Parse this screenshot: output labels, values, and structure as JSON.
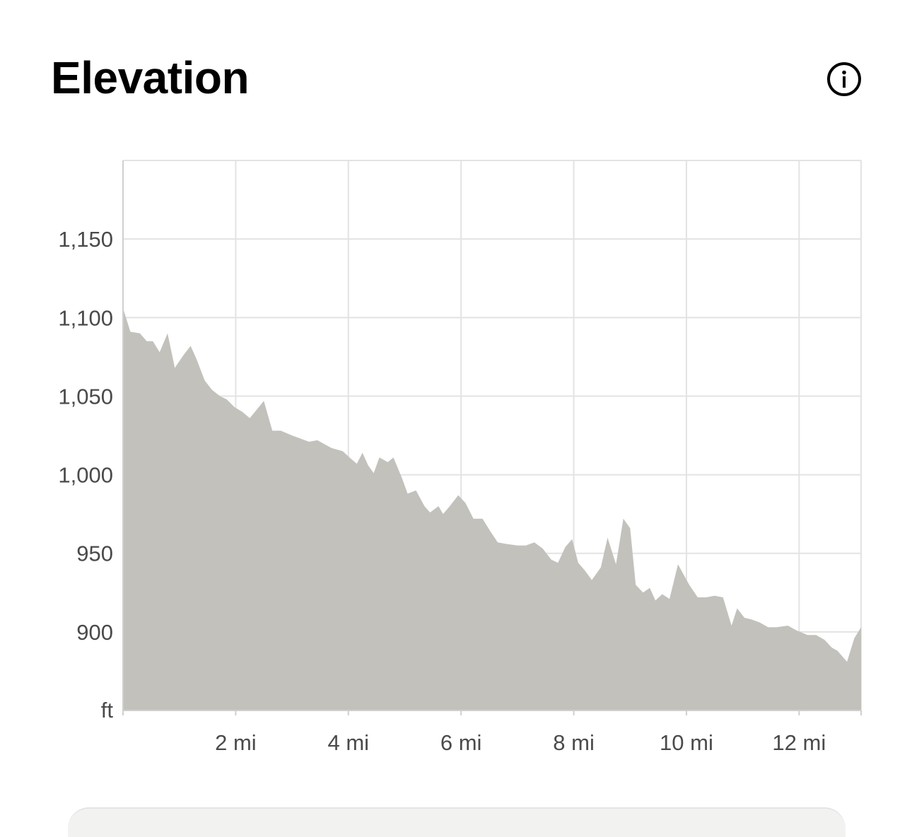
{
  "header": {
    "title": "Elevation",
    "info_icon": "info-icon"
  },
  "colors": {
    "area_fill": "#c2c1bc",
    "grid": "#e3e3e3",
    "axis": "#cfcfcf",
    "tick_text": "#4a4a4a"
  },
  "chart_data": {
    "type": "area",
    "title": "Elevation",
    "xlabel": "",
    "ylabel": "",
    "y_unit_label": "ft",
    "xlim": [
      0,
      13.1
    ],
    "ylim": [
      850,
      1200
    ],
    "grid": true,
    "legend": "none",
    "x_ticks": [
      {
        "value": 2,
        "label": "2 mi"
      },
      {
        "value": 4,
        "label": "4 mi"
      },
      {
        "value": 6,
        "label": "6 mi"
      },
      {
        "value": 8,
        "label": "8 mi"
      },
      {
        "value": 10,
        "label": "10 mi"
      },
      {
        "value": 12,
        "label": "12 mi"
      }
    ],
    "y_ticks": [
      {
        "value": 900,
        "label": "900"
      },
      {
        "value": 950,
        "label": "950"
      },
      {
        "value": 1000,
        "label": "1,000"
      },
      {
        "value": 1050,
        "label": "1,050"
      },
      {
        "value": 1100,
        "label": "1,100"
      },
      {
        "value": 1150,
        "label": "1,150"
      }
    ],
    "series": [
      {
        "x": [
          0,
          0.13,
          0.3,
          0.42,
          0.53,
          0.65,
          0.79,
          0.92,
          1.07,
          1.2,
          1.3,
          1.45,
          1.58,
          1.72,
          1.84,
          1.98,
          2.12,
          2.25,
          2.5,
          2.65,
          2.8,
          3.0,
          3.15,
          3.3,
          3.45,
          3.7,
          3.9,
          4.05,
          4.15,
          4.25,
          4.35,
          4.45,
          4.55,
          4.7,
          4.8,
          4.95,
          5.05,
          5.2,
          5.35,
          5.45,
          5.6,
          5.68,
          5.8,
          5.95,
          6.08,
          6.22,
          6.38,
          6.52,
          6.65,
          6.8,
          7.0,
          7.15,
          7.3,
          7.45,
          7.6,
          7.72,
          7.85,
          7.97,
          8.08,
          8.2,
          8.32,
          8.48,
          8.6,
          8.75,
          8.88,
          9.0,
          9.1,
          9.23,
          9.35,
          9.45,
          9.57,
          9.7,
          9.85,
          10.05,
          10.2,
          10.35,
          10.5,
          10.65,
          10.8,
          10.9,
          11.03,
          11.15,
          11.3,
          11.45,
          11.6,
          11.8,
          11.95,
          12.15,
          12.3,
          12.45,
          12.58,
          12.68,
          12.85,
          12.98,
          13.1
        ],
        "y": [
          1106,
          1091,
          1090,
          1085,
          1085,
          1078,
          1090,
          1068,
          1076,
          1082,
          1074,
          1060,
          1054,
          1050,
          1048,
          1043,
          1040,
          1036,
          1047,
          1028,
          1028,
          1025,
          1023,
          1021,
          1022,
          1017,
          1015,
          1010,
          1007,
          1014,
          1006,
          1001,
          1011,
          1008,
          1011,
          998,
          988,
          990,
          980,
          976,
          980,
          975,
          980,
          987,
          982,
          972,
          972,
          964,
          957,
          956,
          955,
          955,
          957,
          953,
          946,
          944,
          954,
          959,
          944,
          939,
          933,
          941,
          960,
          943,
          972,
          966,
          930,
          925,
          928,
          920,
          924,
          921,
          943,
          930,
          922,
          922,
          923,
          922,
          904,
          915,
          909,
          908,
          906,
          903,
          903,
          904,
          901,
          898,
          898,
          895,
          890,
          888,
          881,
          896,
          903
        ]
      }
    ]
  }
}
